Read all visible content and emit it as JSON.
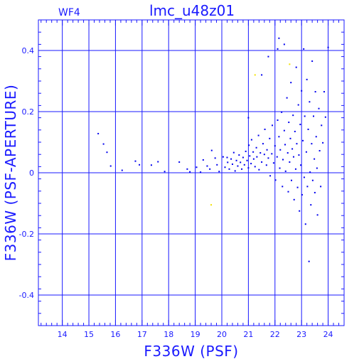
{
  "header": {
    "chip_label": "WF4",
    "title": "lmc_u48z01"
  },
  "colors": {
    "axes": "#1a1aff",
    "points": "#0000ee",
    "highlight_points": "#f2e200",
    "background": "#ffffff"
  },
  "chart_data": {
    "type": "scatter",
    "title": "lmc_u48z01",
    "xlabel": "F336W (PSF)",
    "ylabel": "F336W (PSF-APERTURE)",
    "xlim": [
      13.1,
      24.6
    ],
    "ylim": [
      -0.5,
      0.5
    ],
    "x_ticks": [
      14,
      15,
      16,
      17,
      18,
      19,
      20,
      21,
      22,
      23,
      24
    ],
    "y_ticks": [
      0.4,
      0.2,
      0,
      -0.2,
      -0.4
    ],
    "x_tick_labels": [
      "14",
      "15",
      "16",
      "17",
      "18",
      "19",
      "20",
      "21",
      "22",
      "23",
      "24"
    ],
    "y_tick_labels": [
      "0.4",
      "0.2",
      "0",
      "-0.2",
      "-0.4"
    ],
    "grid": true,
    "series": [
      {
        "color": "#0000ee",
        "points": [
          [
            15.35,
            0.128
          ],
          [
            15.55,
            0.094
          ],
          [
            15.68,
            0.067
          ],
          [
            15.82,
            0.022
          ],
          [
            16.25,
            0.008
          ],
          [
            16.75,
            0.038
          ],
          [
            16.9,
            0.026
          ],
          [
            17.35,
            0.025
          ],
          [
            17.6,
            0.036
          ],
          [
            17.85,
            0.004
          ],
          [
            18.4,
            0.035
          ],
          [
            18.7,
            0.012
          ],
          [
            18.8,
            0.003
          ],
          [
            19.05,
            0.018
          ],
          [
            19.2,
            0.002
          ],
          [
            19.3,
            0.042
          ],
          [
            19.45,
            0.022
          ],
          [
            19.55,
            0.012
          ],
          [
            19.62,
            0.073
          ],
          [
            19.75,
            0.048
          ],
          [
            19.82,
            0.026
          ],
          [
            19.9,
            0.004
          ],
          [
            20.05,
            0.052
          ],
          [
            20.12,
            0.018
          ],
          [
            20.2,
            0.05
          ],
          [
            20.22,
            0.034
          ],
          [
            20.28,
            0.012
          ],
          [
            20.35,
            0.045
          ],
          [
            20.4,
            0.028
          ],
          [
            20.45,
            0.066
          ],
          [
            20.5,
            0.006
          ],
          [
            20.55,
            0.04
          ],
          [
            20.6,
            0.022
          ],
          [
            20.65,
            0.058
          ],
          [
            20.7,
            0.034
          ],
          [
            20.75,
            0.012
          ],
          [
            20.8,
            0.05
          ],
          [
            20.85,
            0.026
          ],
          [
            20.9,
            0.07
          ],
          [
            20.95,
            0.04
          ],
          [
            21.0,
            0.016
          ],
          [
            21.02,
            0.09
          ],
          [
            21.05,
            0.055
          ],
          [
            21.1,
            0.03
          ],
          [
            21.12,
            0.108
          ],
          [
            21.18,
            0.068
          ],
          [
            21.2,
            0.045
          ],
          [
            21.25,
            0.02
          ],
          [
            21.3,
            0.082
          ],
          [
            21.32,
            0.052
          ],
          [
            21.38,
            0.122
          ],
          [
            21.4,
            0.01
          ],
          [
            21.45,
            0.065
          ],
          [
            21.5,
            0.035
          ],
          [
            21.55,
            0.095
          ],
          [
            21.6,
            0.06
          ],
          [
            21.62,
            0.142
          ],
          [
            21.68,
            0.025
          ],
          [
            21.7,
            0.075
          ],
          [
            21.75,
            0.048
          ],
          [
            21.8,
            0.112
          ],
          [
            21.82,
            -0.01
          ],
          [
            21.88,
            0.062
          ],
          [
            21.9,
            0.155
          ],
          [
            21.95,
            0.032
          ],
          [
            22.0,
            0.088
          ],
          [
            22.02,
            -0.024
          ],
          [
            22.08,
            0.052
          ],
          [
            22.1,
            0.172
          ],
          [
            22.15,
            0.118
          ],
          [
            22.18,
            0.015
          ],
          [
            22.2,
            0.075
          ],
          [
            22.25,
            0.198
          ],
          [
            22.28,
            -0.045
          ],
          [
            22.3,
            0.043
          ],
          [
            22.35,
            0.138
          ],
          [
            22.38,
            0.092
          ],
          [
            22.4,
            0.005
          ],
          [
            22.45,
            0.245
          ],
          [
            22.48,
            0.065
          ],
          [
            22.5,
            -0.062
          ],
          [
            22.52,
            0.165
          ],
          [
            22.55,
            0.035
          ],
          [
            22.58,
            0.112
          ],
          [
            22.6,
            0.295
          ],
          [
            22.62,
            -0.025
          ],
          [
            22.65,
            0.078
          ],
          [
            22.68,
            0.188
          ],
          [
            22.7,
            0.052
          ],
          [
            22.72,
            -0.088
          ],
          [
            22.75,
            0.135
          ],
          [
            22.78,
            0.012
          ],
          [
            22.8,
            0.345
          ],
          [
            22.82,
            0.095
          ],
          [
            22.85,
            -0.048
          ],
          [
            22.88,
            0.222
          ],
          [
            22.9,
            0.058
          ],
          [
            22.92,
            -0.125
          ],
          [
            22.95,
            0.158
          ],
          [
            22.97,
            0.025
          ],
          [
            23.0,
            0.268
          ],
          [
            23.02,
            -0.072
          ],
          [
            23.05,
            0.105
          ],
          [
            23.08,
            0.405
          ],
          [
            23.1,
            -0.015
          ],
          [
            23.12,
            0.185
          ],
          [
            23.15,
            -0.168
          ],
          [
            23.18,
            0.068
          ],
          [
            23.2,
            0.305
          ],
          [
            23.22,
            -0.045
          ],
          [
            23.25,
            0.142
          ],
          [
            23.28,
            -0.29
          ],
          [
            23.3,
            0.232
          ],
          [
            23.32,
            0.002
          ],
          [
            23.35,
            -0.105
          ],
          [
            23.38,
            0.095
          ],
          [
            23.4,
            0.365
          ],
          [
            23.42,
            -0.025
          ],
          [
            23.45,
            0.185
          ],
          [
            23.48,
            0.045
          ],
          [
            23.5,
            -0.065
          ],
          [
            23.52,
            0.265
          ],
          [
            23.55,
            0.118
          ],
          [
            23.58,
            0.015
          ],
          [
            23.6,
            -0.138
          ],
          [
            23.65,
            0.21
          ],
          [
            23.68,
            0.072
          ],
          [
            23.72,
            -0.045
          ],
          [
            23.75,
            0.155
          ],
          [
            23.8,
            0.098
          ],
          [
            23.85,
            0.265
          ],
          [
            23.9,
            0.182
          ],
          [
            24.0,
            0.41
          ],
          [
            22.15,
            0.44
          ],
          [
            22.35,
            0.42
          ],
          [
            21.75,
            0.38
          ],
          [
            22.1,
            0.405
          ],
          [
            21.5,
            0.32
          ],
          [
            21.0,
            0.18
          ]
        ]
      },
      {
        "color": "#f2e200",
        "points": [
          [
            19.6,
            -0.105
          ],
          [
            21.25,
            0.32
          ],
          [
            22.55,
            0.355
          ]
        ]
      }
    ]
  }
}
